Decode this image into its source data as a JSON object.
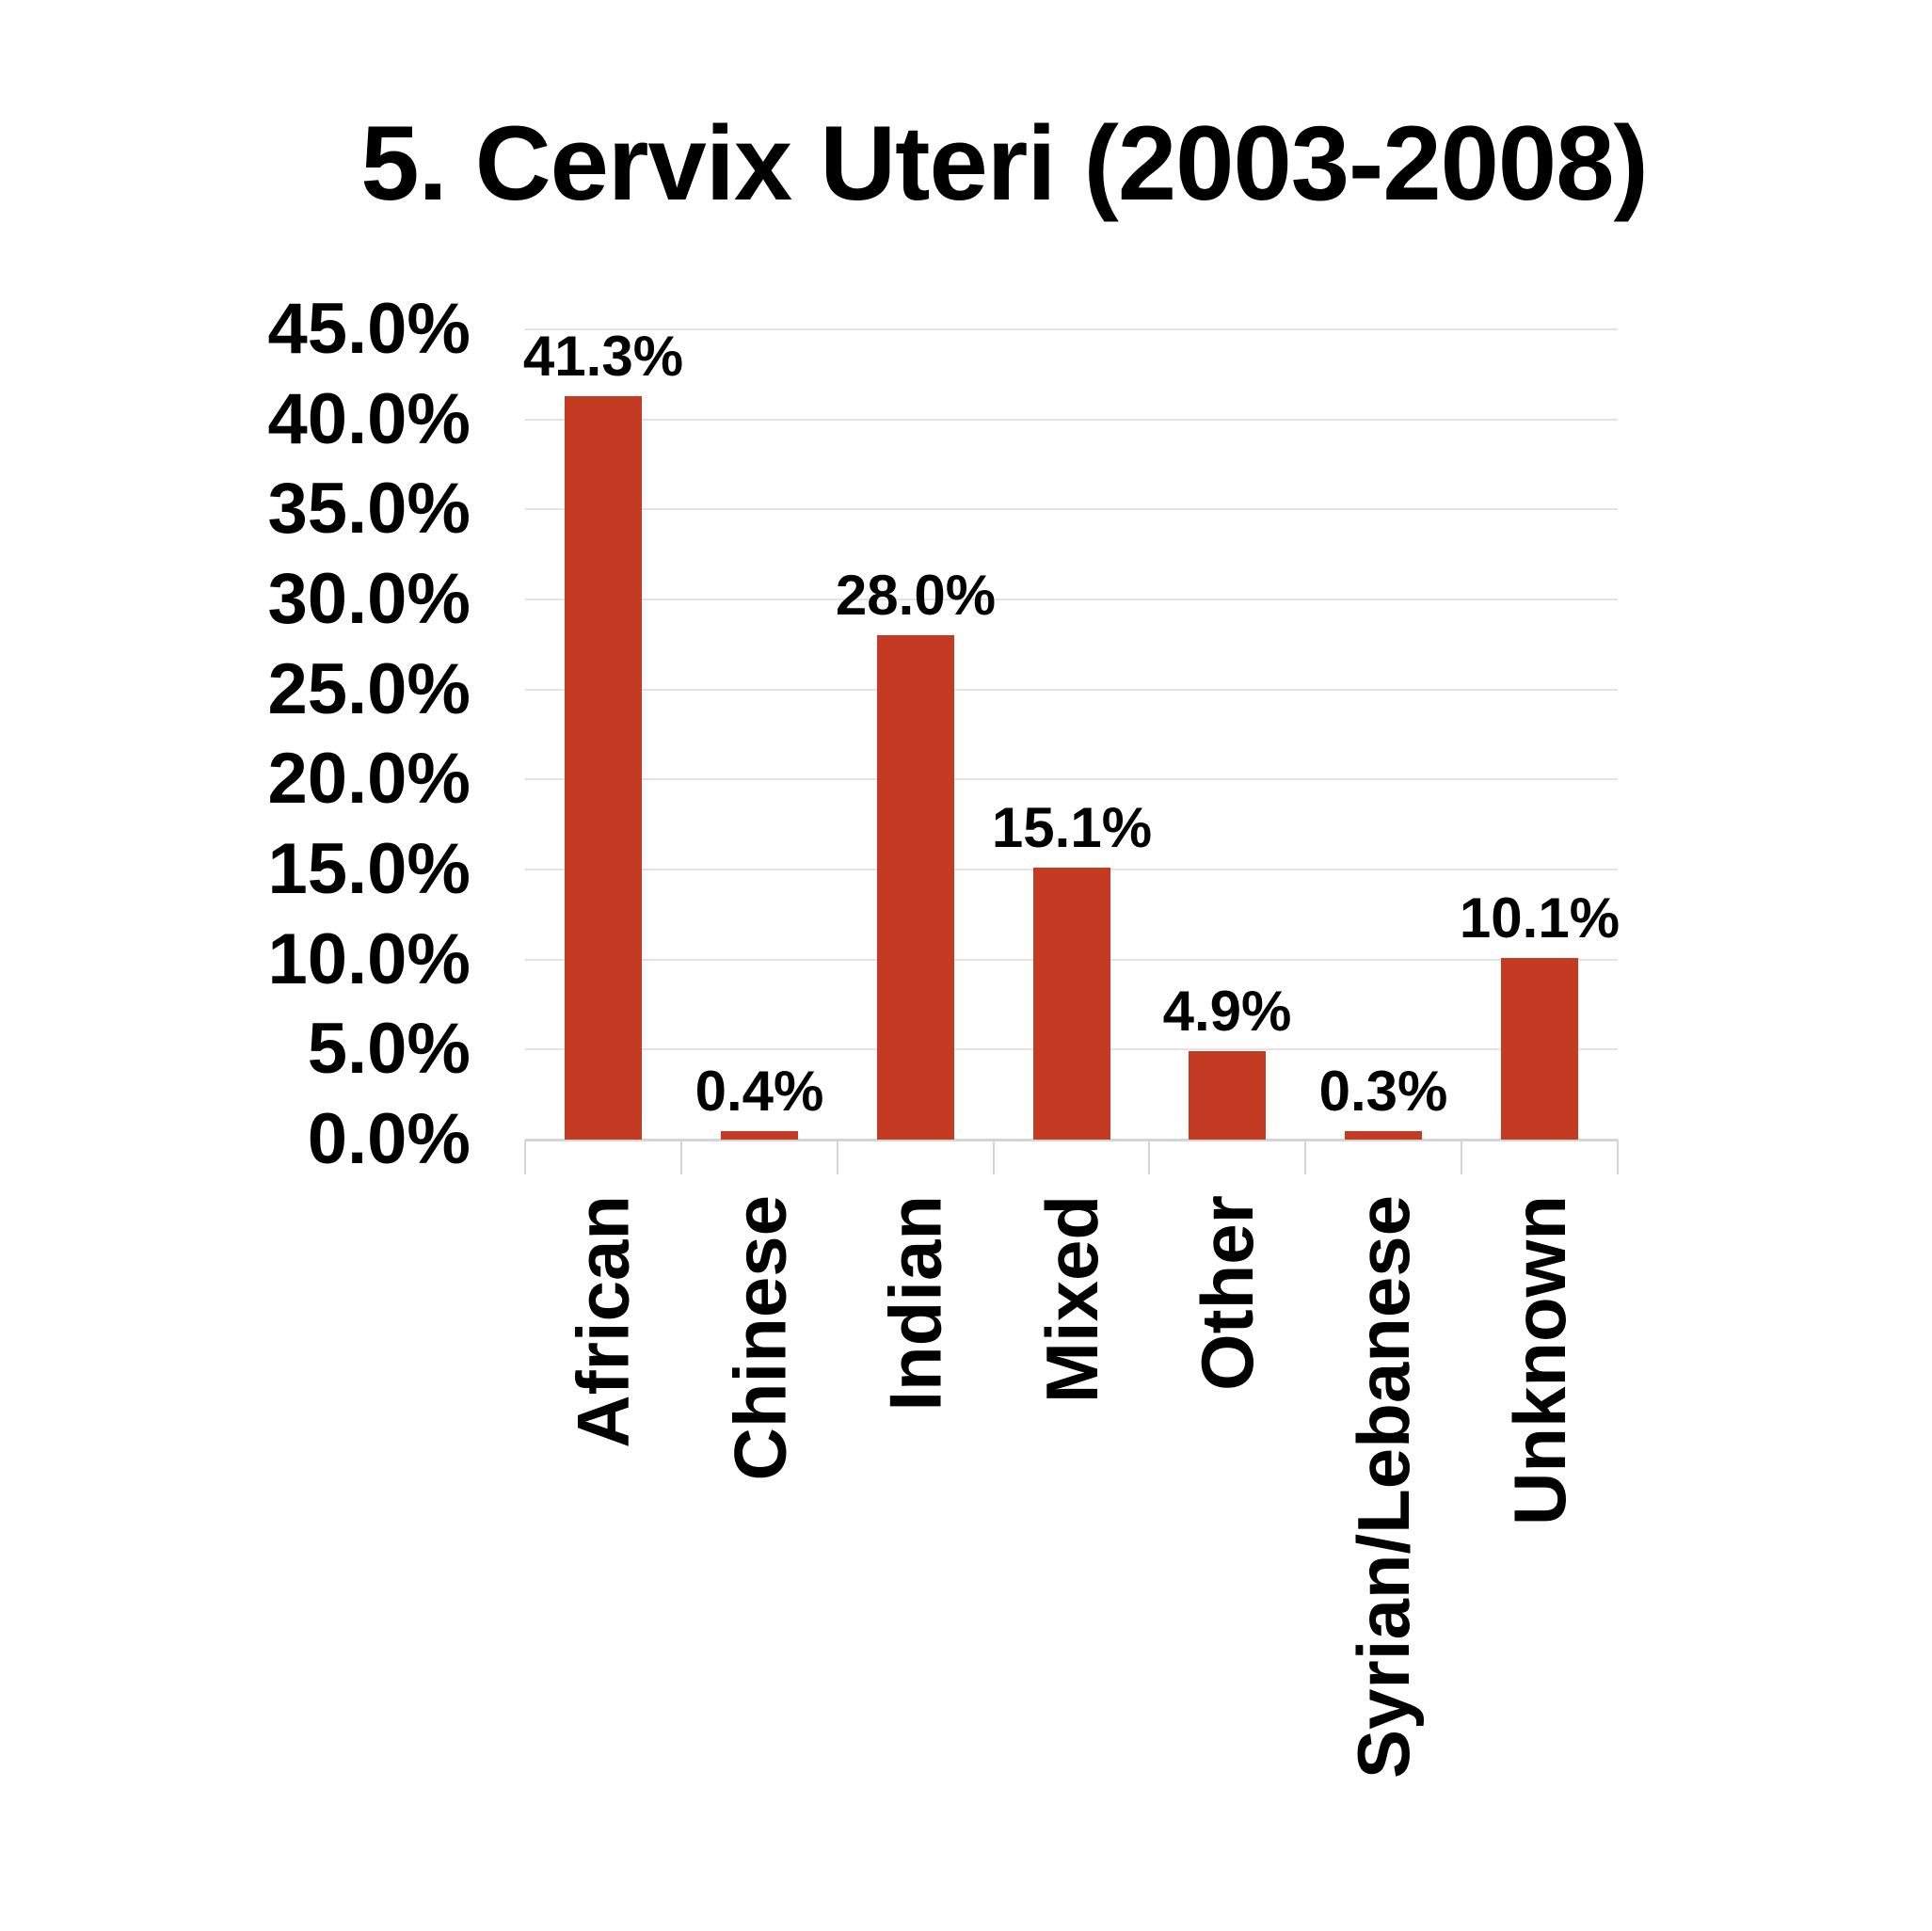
{
  "chart_data": {
    "type": "bar",
    "title": "5. Cervix Uteri (2003-2008)",
    "categories": [
      "African",
      "Chinese",
      "Indian",
      "Mixed",
      "Other",
      "Syrian/Lebanese",
      "Unknown"
    ],
    "values": [
      41.3,
      0.4,
      28.0,
      15.1,
      4.9,
      0.3,
      10.1
    ],
    "data_labels": [
      "41.3%",
      "0.4%",
      "28.0%",
      "15.1%",
      "4.9%",
      "0.3%",
      "10.1%"
    ],
    "y_tick_labels": [
      "45.0%",
      "40.0%",
      "35.0%",
      "30.0%",
      "25.0%",
      "20.0%",
      "15.0%",
      "10.0%",
      "5.0%",
      "0.0%"
    ],
    "ylim": [
      0,
      45
    ],
    "y_tick_step": 5,
    "xlabel": "",
    "ylabel": "",
    "grid": "horizontal",
    "legend": "none",
    "colors": {
      "bar": "#c33b23",
      "gridline": "#e3e3e3",
      "axis": "#d5d5d5",
      "text": "#000000"
    }
  }
}
